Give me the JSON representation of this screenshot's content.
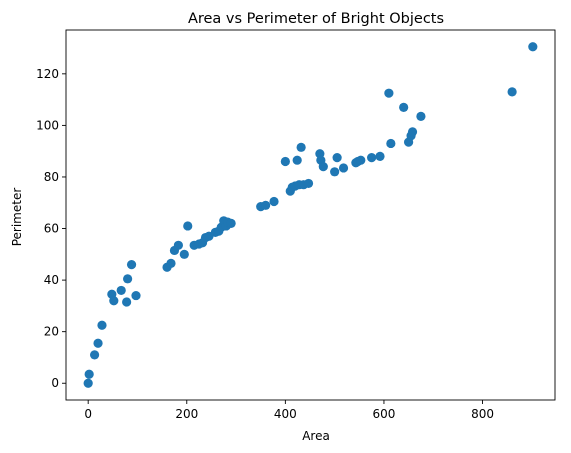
{
  "chart_data": {
    "type": "scatter",
    "title": "Area vs Perimeter of Bright Objects",
    "xlabel": "Area",
    "ylabel": "Perimeter",
    "xlim": [
      -45,
      947
    ],
    "ylim": [
      -6.5,
      137
    ],
    "xticks": [
      0,
      200,
      400,
      600,
      800
    ],
    "yticks": [
      0,
      20,
      40,
      60,
      80,
      100,
      120
    ],
    "grid": false,
    "marker_color": "#1f77b4",
    "points": [
      {
        "x": 0,
        "y": 0
      },
      {
        "x": 2,
        "y": 3.5
      },
      {
        "x": 13,
        "y": 11
      },
      {
        "x": 20,
        "y": 15.5
      },
      {
        "x": 28,
        "y": 22.5
      },
      {
        "x": 48,
        "y": 34.5
      },
      {
        "x": 52,
        "y": 32
      },
      {
        "x": 67,
        "y": 36
      },
      {
        "x": 78,
        "y": 31.5
      },
      {
        "x": 80,
        "y": 40.5
      },
      {
        "x": 88,
        "y": 46
      },
      {
        "x": 97,
        "y": 34
      },
      {
        "x": 160,
        "y": 45
      },
      {
        "x": 168,
        "y": 46.5
      },
      {
        "x": 175,
        "y": 51.5
      },
      {
        "x": 183,
        "y": 53.5
      },
      {
        "x": 195,
        "y": 50
      },
      {
        "x": 202,
        "y": 61
      },
      {
        "x": 215,
        "y": 53.5
      },
      {
        "x": 225,
        "y": 54
      },
      {
        "x": 232,
        "y": 54.5
      },
      {
        "x": 238,
        "y": 56.5
      },
      {
        "x": 245,
        "y": 57
      },
      {
        "x": 258,
        "y": 58.5
      },
      {
        "x": 265,
        "y": 59
      },
      {
        "x": 270,
        "y": 60.5
      },
      {
        "x": 275,
        "y": 63
      },
      {
        "x": 280,
        "y": 61
      },
      {
        "x": 283,
        "y": 62.5
      },
      {
        "x": 290,
        "y": 62
      },
      {
        "x": 350,
        "y": 68.5
      },
      {
        "x": 360,
        "y": 69
      },
      {
        "x": 377,
        "y": 70.5
      },
      {
        "x": 400,
        "y": 86
      },
      {
        "x": 410,
        "y": 74.5
      },
      {
        "x": 414,
        "y": 76
      },
      {
        "x": 420,
        "y": 76.5
      },
      {
        "x": 424,
        "y": 86.5
      },
      {
        "x": 428,
        "y": 77
      },
      {
        "x": 432,
        "y": 91.5
      },
      {
        "x": 437,
        "y": 77
      },
      {
        "x": 447,
        "y": 77.5
      },
      {
        "x": 470,
        "y": 89
      },
      {
        "x": 472,
        "y": 86.5
      },
      {
        "x": 477,
        "y": 84
      },
      {
        "x": 500,
        "y": 82
      },
      {
        "x": 505,
        "y": 87.5
      },
      {
        "x": 518,
        "y": 83.5
      },
      {
        "x": 543,
        "y": 85.5
      },
      {
        "x": 547,
        "y": 86
      },
      {
        "x": 553,
        "y": 86.5
      },
      {
        "x": 575,
        "y": 87.5
      },
      {
        "x": 592,
        "y": 88
      },
      {
        "x": 610,
        "y": 112.5
      },
      {
        "x": 614,
        "y": 93
      },
      {
        "x": 640,
        "y": 107
      },
      {
        "x": 650,
        "y": 93.5
      },
      {
        "x": 655,
        "y": 96
      },
      {
        "x": 658,
        "y": 97.5
      },
      {
        "x": 675,
        "y": 103.5
      },
      {
        "x": 860,
        "y": 113
      },
      {
        "x": 902,
        "y": 130.5
      }
    ]
  }
}
